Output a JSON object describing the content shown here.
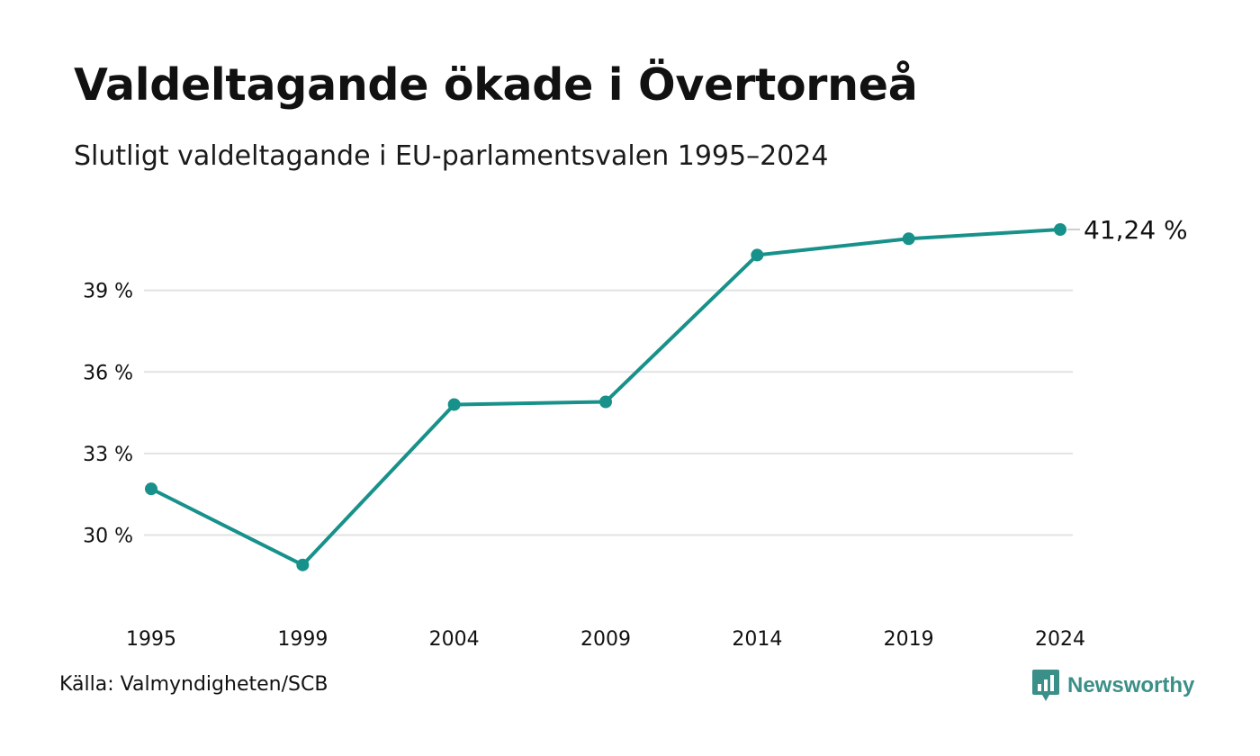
{
  "title": "Valdeltagande ökade i Övertorneå",
  "subtitle": "Slutligt valdeltagande i EU-parlamentsvalen 1995–2024",
  "source": "Källa: Valmyndigheten/SCB",
  "brand": {
    "name": "Newsworthy",
    "color": "#3a8f88",
    "icon": "bar-chart-bubble-icon"
  },
  "colors": {
    "line": "#17918a",
    "grid": "#e2e2e2",
    "text": "#111111"
  },
  "chart_data": {
    "type": "line",
    "x": [
      "1995",
      "1999",
      "2004",
      "2009",
      "2014",
      "2019",
      "2024"
    ],
    "series": [
      {
        "values": [
          31.7,
          28.9,
          34.8,
          34.9,
          40.3,
          40.9,
          41.24
        ]
      }
    ],
    "yticks": [
      30,
      33,
      36,
      39
    ],
    "ytick_labels": [
      "30 %",
      "33 %",
      "36 %",
      "39 %"
    ],
    "ylim": [
      27.5,
      42.2
    ],
    "end_label": "41,24 %",
    "grid": true,
    "legend": "none"
  }
}
